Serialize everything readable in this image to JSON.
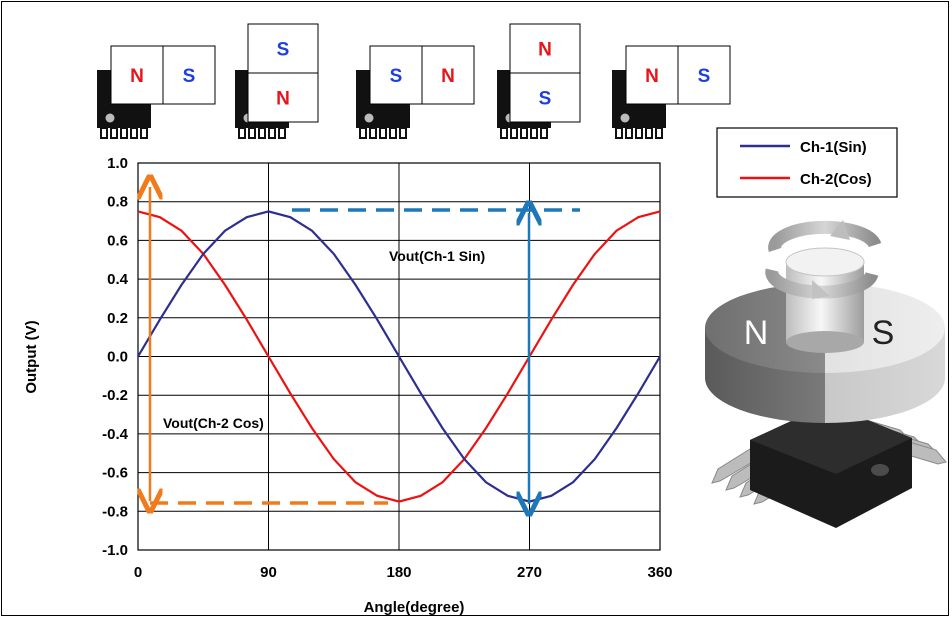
{
  "magnets": [
    {
      "orientation": "horizontal",
      "first": "N",
      "second": "S"
    },
    {
      "orientation": "vertical",
      "first": "S",
      "second": "N"
    },
    {
      "orientation": "horizontal",
      "first": "S",
      "second": "N"
    },
    {
      "orientation": "vertical",
      "first": "N",
      "second": "S"
    },
    {
      "orientation": "horizontal",
      "first": "N",
      "second": "S"
    }
  ],
  "colors": {
    "N": "#e8141b",
    "S": "#1d3fe0",
    "ch1": "#2e2e91",
    "ch2": "#ee1111",
    "vout_ch2": "#f07a1c",
    "vout_ch1": "#1c78b8"
  },
  "annotations": {
    "vout_ch1": "Vout(Ch-1 Sin)",
    "vout_ch2": "Vout(Ch-2 Cos)"
  },
  "illustration": {
    "n_label": "N",
    "s_label": "S"
  },
  "chart_data": {
    "type": "line",
    "xlabel": "Angle(degree)",
    "ylabel": "Output (V)",
    "xlim": [
      0,
      360
    ],
    "ylim": [
      -1.0,
      1.0
    ],
    "xticks": [
      "0",
      "90",
      "180",
      "270",
      "360"
    ],
    "yticks": [
      "1.0",
      "0.8",
      "0.6",
      "0.4",
      "0.2",
      "0.0",
      "-0.2",
      "-0.4",
      "-0.6",
      "-0.8",
      "-1.0"
    ],
    "grid": true,
    "legend_position": "top-right",
    "x": [
      0,
      15,
      30,
      45,
      60,
      75,
      90,
      105,
      120,
      135,
      150,
      165,
      180,
      195,
      210,
      225,
      240,
      255,
      270,
      285,
      300,
      315,
      330,
      345,
      360
    ],
    "series": [
      {
        "name": "Ch-1(Sin)",
        "values": [
          0.0,
          0.19,
          0.37,
          0.53,
          0.65,
          0.72,
          0.75,
          0.72,
          0.65,
          0.53,
          0.37,
          0.19,
          0.0,
          -0.19,
          -0.37,
          -0.53,
          -0.65,
          -0.72,
          -0.75,
          -0.72,
          -0.65,
          -0.53,
          -0.37,
          -0.19,
          0.0
        ]
      },
      {
        "name": "Ch-2(Cos)",
        "values": [
          0.75,
          0.72,
          0.65,
          0.53,
          0.37,
          0.19,
          0.0,
          -0.19,
          -0.37,
          -0.53,
          -0.65,
          -0.72,
          -0.75,
          -0.72,
          -0.65,
          -0.53,
          -0.37,
          -0.19,
          0.0,
          0.19,
          0.37,
          0.53,
          0.65,
          0.72,
          0.75
        ]
      }
    ]
  }
}
